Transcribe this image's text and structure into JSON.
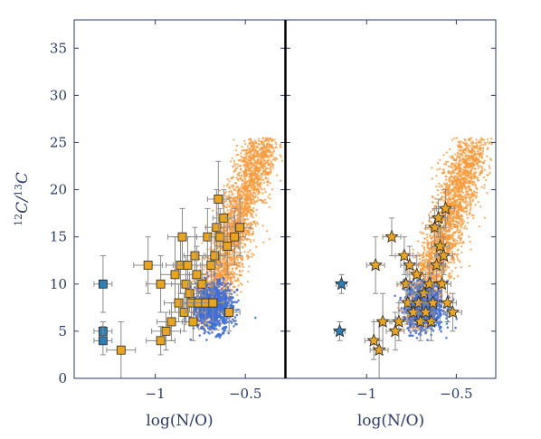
{
  "chart_data": {
    "type": "scatter",
    "ylabel_html": [
      "12",
      "C/",
      "13",
      "C"
    ],
    "xlabel": "log(N/O)",
    "ylim": [
      0,
      38
    ],
    "xlim": [
      -1.45,
      -0.28
    ],
    "y_ticks": [
      0,
      5,
      10,
      15,
      20,
      25,
      30,
      35
    ],
    "x_ticks": [
      -1,
      -0.5
    ],
    "x_tick_labels": [
      "−1",
      "−0.5"
    ],
    "colors": {
      "orange_cloud": "#f89a3a",
      "blue_cloud": "#3f6fd9",
      "gold_marker": "#e9a51f",
      "teal_marker": "#2f7fb3",
      "axis": "#2b3a67",
      "errorbar": "#8c8c8c"
    },
    "orange_cloud_region": {
      "x": [
        -0.82,
        -0.35
      ],
      "y": [
        5,
        25
      ]
    },
    "blue_cloud_region": {
      "x": [
        -0.85,
        -0.5
      ],
      "y": [
        4,
        11
      ]
    },
    "panels": [
      {
        "name": "left",
        "marker": "square",
        "teal_points": [
          {
            "x": -1.29,
            "y": 10,
            "xerr": 0.05,
            "yerr": 3
          },
          {
            "x": -1.29,
            "y": 5,
            "xerr": 0.05,
            "yerr": 1
          },
          {
            "x": -1.29,
            "y": 4,
            "xerr": 0.05,
            "yerr": 1.5
          }
        ],
        "gold_points": [
          {
            "x": -1.19,
            "y": 3,
            "xerr": 0.08,
            "yerr": 3
          },
          {
            "x": -1.04,
            "y": 12,
            "xerr": 0.08,
            "yerr": 3
          },
          {
            "x": -0.97,
            "y": 4,
            "xerr": 0.08,
            "yerr": 1.5
          },
          {
            "x": -0.94,
            "y": 5,
            "xerr": 0.08,
            "yerr": 2
          },
          {
            "x": -0.91,
            "y": 6,
            "xerr": 0.08,
            "yerr": 2
          },
          {
            "x": -0.97,
            "y": 10,
            "xerr": 0.08,
            "yerr": 3
          },
          {
            "x": -0.89,
            "y": 11,
            "xerr": 0.08,
            "yerr": 4
          },
          {
            "x": -0.87,
            "y": 8,
            "xerr": 0.08,
            "yerr": 2
          },
          {
            "x": -0.86,
            "y": 12,
            "xerr": 0.08,
            "yerr": 3
          },
          {
            "x": -0.85,
            "y": 15,
            "xerr": 0.08,
            "yerr": 3
          },
          {
            "x": -0.84,
            "y": 7,
            "xerr": 0.08,
            "yerr": 2
          },
          {
            "x": -0.83,
            "y": 10,
            "xerr": 0.08,
            "yerr": 3
          },
          {
            "x": -0.82,
            "y": 12,
            "xerr": 0.08,
            "yerr": 3
          },
          {
            "x": -0.81,
            "y": 9,
            "xerr": 0.06,
            "yerr": 2
          },
          {
            "x": -0.8,
            "y": 8,
            "xerr": 0.06,
            "yerr": 2
          },
          {
            "x": -0.79,
            "y": 6,
            "xerr": 0.06,
            "yerr": 2
          },
          {
            "x": -0.78,
            "y": 13,
            "xerr": 0.06,
            "yerr": 3
          },
          {
            "x": -0.77,
            "y": 11,
            "xerr": 0.06,
            "yerr": 3
          },
          {
            "x": -0.76,
            "y": 8,
            "xerr": 0.06,
            "yerr": 2
          },
          {
            "x": -0.74,
            "y": 10,
            "xerr": 0.06,
            "yerr": 3
          },
          {
            "x": -0.72,
            "y": 8,
            "xerr": 0.06,
            "yerr": 2
          },
          {
            "x": -0.71,
            "y": 15,
            "xerr": 0.06,
            "yerr": 3
          },
          {
            "x": -0.69,
            "y": 12,
            "xerr": 0.06,
            "yerr": 3
          },
          {
            "x": -0.68,
            "y": 8,
            "xerr": 0.06,
            "yerr": 2
          },
          {
            "x": -0.67,
            "y": 13,
            "xerr": 0.06,
            "yerr": 3
          },
          {
            "x": -0.66,
            "y": 16,
            "xerr": 0.06,
            "yerr": 4
          },
          {
            "x": -0.65,
            "y": 19,
            "xerr": 0.06,
            "yerr": 4
          },
          {
            "x": -0.64,
            "y": 15,
            "xerr": 0.06,
            "yerr": 3
          },
          {
            "x": -0.62,
            "y": 17,
            "xerr": 0.06,
            "yerr": 3
          },
          {
            "x": -0.6,
            "y": 14,
            "xerr": 0.06,
            "yerr": 3
          },
          {
            "x": -0.59,
            "y": 7,
            "xerr": 0.06,
            "yerr": 2
          },
          {
            "x": -0.56,
            "y": 15,
            "xerr": 0.06,
            "yerr": 3
          },
          {
            "x": -0.53,
            "y": 16,
            "xerr": 0.06,
            "yerr": 3
          }
        ]
      },
      {
        "name": "right",
        "marker": "star",
        "teal_points": [
          {
            "x": -1.14,
            "y": 10,
            "xerr": 0.03,
            "yerr": 1
          },
          {
            "x": -1.15,
            "y": 5,
            "xerr": 0.03,
            "yerr": 1
          }
        ],
        "gold_points": [
          {
            "x": -0.96,
            "y": 4,
            "xerr": 0.05,
            "yerr": 2
          },
          {
            "x": -0.93,
            "y": 3,
            "xerr": 0.05,
            "yerr": 3
          },
          {
            "x": -0.91,
            "y": 6,
            "xerr": 0.05,
            "yerr": 3
          },
          {
            "x": -0.86,
            "y": 15,
            "xerr": 0.05,
            "yerr": 2
          },
          {
            "x": -0.95,
            "y": 12,
            "xerr": 0.05,
            "yerr": 3
          },
          {
            "x": -0.84,
            "y": 5,
            "xerr": 0.05,
            "yerr": 2
          },
          {
            "x": -0.82,
            "y": 6,
            "xerr": 0.05,
            "yerr": 2
          },
          {
            "x": -0.79,
            "y": 13,
            "xerr": 0.05,
            "yerr": 2
          },
          {
            "x": -0.78,
            "y": 10,
            "xerr": 0.05,
            "yerr": 2
          },
          {
            "x": -0.77,
            "y": 8,
            "xerr": 0.05,
            "yerr": 2
          },
          {
            "x": -0.76,
            "y": 12,
            "xerr": 0.05,
            "yerr": 2
          },
          {
            "x": -0.74,
            "y": 7,
            "xerr": 0.05,
            "yerr": 2
          },
          {
            "x": -0.72,
            "y": 11,
            "xerr": 0.05,
            "yerr": 2
          },
          {
            "x": -0.71,
            "y": 8,
            "xerr": 0.05,
            "yerr": 2
          },
          {
            "x": -0.7,
            "y": 6,
            "xerr": 0.05,
            "yerr": 2
          },
          {
            "x": -0.68,
            "y": 9,
            "xerr": 0.05,
            "yerr": 2
          },
          {
            "x": -0.67,
            "y": 7,
            "xerr": 0.05,
            "yerr": 2
          },
          {
            "x": -0.65,
            "y": 10,
            "xerr": 0.05,
            "yerr": 2
          },
          {
            "x": -0.64,
            "y": 6,
            "xerr": 0.05,
            "yerr": 2
          },
          {
            "x": -0.63,
            "y": 8,
            "xerr": 0.05,
            "yerr": 2
          },
          {
            "x": -0.62,
            "y": 16,
            "xerr": 0.05,
            "yerr": 2
          },
          {
            "x": -0.61,
            "y": 12,
            "xerr": 0.05,
            "yerr": 2
          },
          {
            "x": -0.6,
            "y": 17,
            "xerr": 0.05,
            "yerr": 2
          },
          {
            "x": -0.59,
            "y": 14,
            "xerr": 0.05,
            "yerr": 2
          },
          {
            "x": -0.58,
            "y": 10,
            "xerr": 0.05,
            "yerr": 2
          },
          {
            "x": -0.57,
            "y": 13,
            "xerr": 0.05,
            "yerr": 2
          },
          {
            "x": -0.56,
            "y": 18,
            "xerr": 0.05,
            "yerr": 2
          },
          {
            "x": -0.55,
            "y": 8,
            "xerr": 0.05,
            "yerr": 2
          },
          {
            "x": -0.52,
            "y": 7,
            "xerr": 0.05,
            "yerr": 2
          }
        ]
      }
    ]
  }
}
